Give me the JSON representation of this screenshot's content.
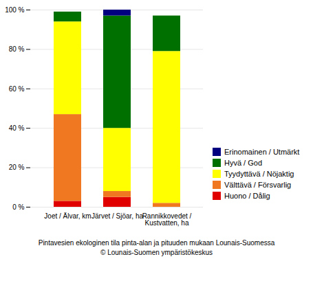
{
  "chart_data": {
    "type": "bar",
    "stacked": true,
    "categories": [
      "Joet / Älvar, km",
      "Järvet / Sjöar, ha",
      "Rannikkovedet /\nKustvatten, ha"
    ],
    "series": [
      {
        "name": "Huono / Dålig",
        "color": "#e00000",
        "values": [
          3,
          5,
          0
        ]
      },
      {
        "name": "Välttävä / Försvarlig",
        "color": "#f07820",
        "values": [
          44,
          3,
          2
        ]
      },
      {
        "name": "Tyydyttävä / Nöjaktig",
        "color": "#ffff00",
        "values": [
          47,
          32,
          77
        ]
      },
      {
        "name": "Hyvä / God",
        "color": "#007000",
        "values": [
          5,
          57,
          18
        ]
      },
      {
        "name": "Erinomainen / Utmärkt",
        "color": "#000080",
        "values": [
          0,
          3,
          0
        ]
      }
    ],
    "ylim": [
      0,
      100
    ],
    "yticks": [
      {
        "value": 0,
        "label": "0 %"
      },
      {
        "value": 20,
        "label": "20 %"
      },
      {
        "value": 40,
        "label": "40 %"
      },
      {
        "value": 60,
        "label": "60 %"
      },
      {
        "value": 80,
        "label": "80 %"
      },
      {
        "value": 100,
        "label": "100 %"
      }
    ],
    "grid": true,
    "legend": "right",
    "caption": "Pintavesien ekologinen tila pinta-alan ja pituuden mukaan Lounais-Suomessa\n© Lounais-Suomen ympäristökeskus"
  }
}
